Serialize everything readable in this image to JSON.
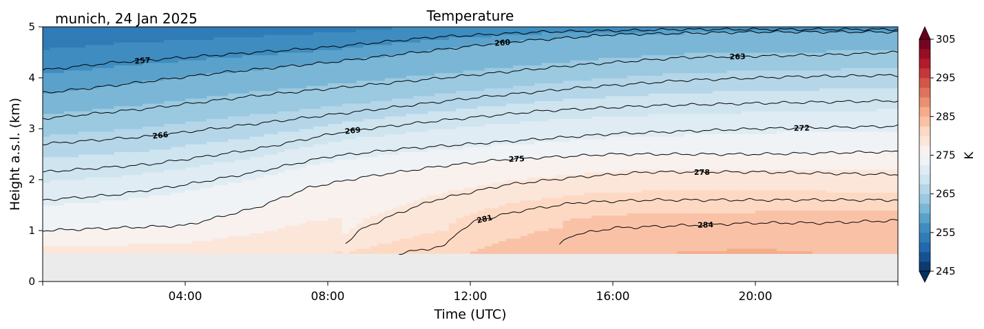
{
  "chart_data": {
    "type": "heatmap",
    "title": "Temperature",
    "subtitle": "munich, 24 Jan 2025",
    "xlabel": "Time (UTC)",
    "ylabel": "Height a.s.l. (km)",
    "xlim": [
      0,
      24
    ],
    "ylim": [
      0,
      5
    ],
    "x_ticks": [
      {
        "value": 4,
        "label": "04:00"
      },
      {
        "value": 8,
        "label": "08:00"
      },
      {
        "value": 12,
        "label": "12:00"
      },
      {
        "value": 16,
        "label": "16:00"
      },
      {
        "value": 20,
        "label": "20:00"
      }
    ],
    "y_ticks": [
      0,
      1,
      2,
      3,
      4,
      5
    ],
    "data_bottom_height_km": 0.55,
    "surface_temperature_k": [
      {
        "time": 0,
        "value": 278.5
      },
      {
        "time": 4,
        "value": 279
      },
      {
        "time": 8,
        "value": 280
      },
      {
        "time": 10,
        "value": 281
      },
      {
        "time": 12,
        "value": 282.5
      },
      {
        "time": 14,
        "value": 284
      },
      {
        "time": 17,
        "value": 285
      },
      {
        "time": 20,
        "value": 285.2
      },
      {
        "time": 22,
        "value": 285
      },
      {
        "time": 24,
        "value": 284
      }
    ],
    "contours": [
      {
        "level": 257,
        "label": "257",
        "points": [
          [
            0,
            4.15
          ],
          [
            2,
            4.3
          ],
          [
            5,
            4.45
          ],
          [
            8,
            4.6
          ],
          [
            11,
            4.8
          ],
          [
            14,
            4.9
          ],
          [
            18,
            4.95
          ],
          [
            24,
            4.95
          ]
        ]
      },
      {
        "level": 260,
        "label": "260",
        "points": [
          [
            0,
            3.7
          ],
          [
            2,
            3.85
          ],
          [
            5,
            4.1
          ],
          [
            8,
            4.3
          ],
          [
            10.5,
            4.5
          ],
          [
            13,
            4.7
          ],
          [
            16,
            4.85
          ],
          [
            20,
            4.9
          ],
          [
            24,
            4.9
          ]
        ]
      },
      {
        "level": 263,
        "label": "263",
        "points": [
          [
            0,
            3.2
          ],
          [
            3,
            3.4
          ],
          [
            6,
            3.65
          ],
          [
            9,
            3.85
          ],
          [
            12,
            4.05
          ],
          [
            15,
            4.25
          ],
          [
            18,
            4.4
          ],
          [
            22,
            4.45
          ],
          [
            24,
            4.5
          ]
        ]
      },
      {
        "level": 266,
        "label": "266",
        "points": [
          [
            0,
            2.7
          ],
          [
            3,
            2.85
          ],
          [
            6,
            3.1
          ],
          [
            9,
            3.35
          ],
          [
            12,
            3.6
          ],
          [
            15,
            3.8
          ],
          [
            18,
            3.95
          ],
          [
            21,
            4.02
          ],
          [
            24,
            4.05
          ]
        ]
      },
      {
        "level": 269,
        "label": "269",
        "points": [
          [
            0,
            2.15
          ],
          [
            3,
            2.3
          ],
          [
            6,
            2.6
          ],
          [
            8.5,
            2.95
          ],
          [
            11,
            3.15
          ],
          [
            14,
            3.35
          ],
          [
            17,
            3.45
          ],
          [
            20,
            3.5
          ],
          [
            24,
            3.55
          ]
        ]
      },
      {
        "level": 272,
        "label": "272",
        "points": [
          [
            0,
            1.6
          ],
          [
            2,
            1.7
          ],
          [
            4,
            1.9
          ],
          [
            6,
            2.15
          ],
          [
            8,
            2.45
          ],
          [
            10,
            2.6
          ],
          [
            13,
            2.75
          ],
          [
            16,
            2.9
          ],
          [
            20,
            3.0
          ],
          [
            24,
            3.05
          ]
        ]
      },
      {
        "level": 275,
        "label": "275",
        "points": [
          [
            0,
            1.0
          ],
          [
            2,
            1.05
          ],
          [
            4,
            1.1
          ],
          [
            6,
            1.45
          ],
          [
            7.5,
            1.85
          ],
          [
            9,
            2.05
          ],
          [
            11,
            2.25
          ],
          [
            13,
            2.4
          ],
          [
            16,
            2.5
          ],
          [
            20,
            2.5
          ],
          [
            24,
            2.55
          ]
        ]
      },
      {
        "level": 278,
        "label": "278",
        "points": [
          [
            8.5,
            0.75
          ],
          [
            9,
            1.05
          ],
          [
            10,
            1.35
          ],
          [
            11,
            1.6
          ],
          [
            13,
            1.9
          ],
          [
            15,
            2.05
          ],
          [
            17,
            2.15
          ],
          [
            20,
            2.15
          ],
          [
            24,
            2.1
          ]
        ]
      },
      {
        "level": 281,
        "label": "281",
        "points": [
          [
            10,
            0.55
          ],
          [
            11.3,
            0.7
          ],
          [
            11.6,
            0.95
          ],
          [
            12.2,
            1.2
          ],
          [
            13.5,
            1.4
          ],
          [
            15,
            1.55
          ],
          [
            17,
            1.6
          ],
          [
            20,
            1.6
          ],
          [
            24,
            1.6
          ]
        ]
      },
      {
        "level": 284,
        "label": "284",
        "points": [
          [
            14.5,
            0.72
          ],
          [
            14.8,
            0.9
          ],
          [
            16,
            1.05
          ],
          [
            18,
            1.1
          ],
          [
            20,
            1.15
          ],
          [
            22,
            1.15
          ],
          [
            24,
            1.2
          ]
        ]
      }
    ],
    "colorbar": {
      "label": "K",
      "min": 245,
      "max": 305,
      "ticks": [
        245,
        255,
        265,
        275,
        285,
        295,
        305
      ],
      "extend": "both"
    }
  }
}
